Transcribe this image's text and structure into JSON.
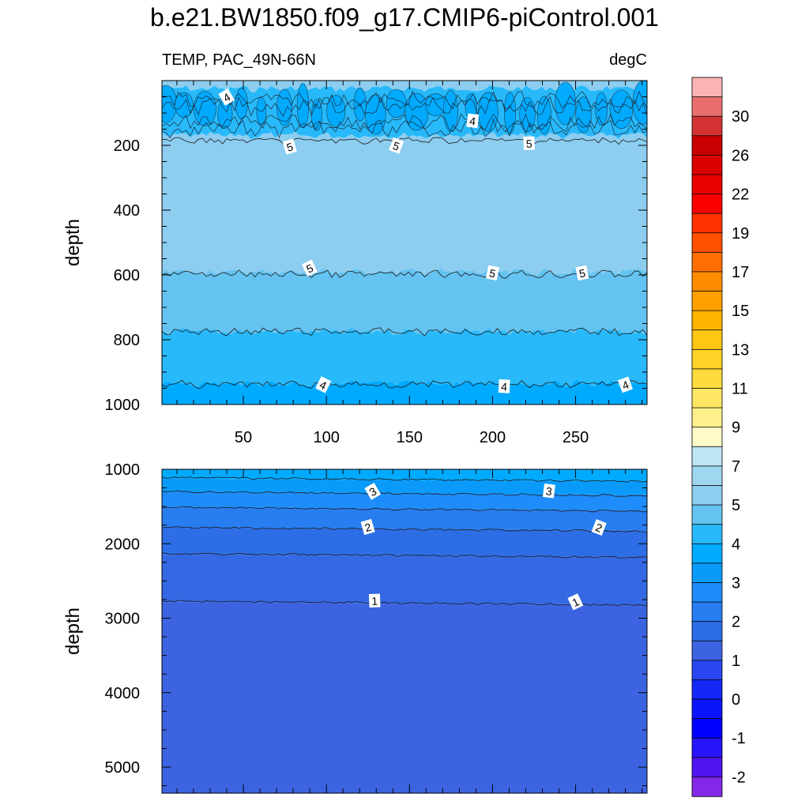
{
  "title": "b.e21.BW1850.f09_g17.CMIP6-piControl.001",
  "subtitle_left": "TEMP, PAC_49N-66N",
  "subtitle_right": "degC",
  "chart_data": [
    {
      "type": "contour",
      "panel": "upper",
      "ylabel": "depth",
      "xlabel": "",
      "xlim": [
        1,
        293
      ],
      "ylim": [
        0,
        1000
      ],
      "x_ticks": [
        50,
        100,
        150,
        200,
        250
      ],
      "y_ticks": [
        200,
        400,
        600,
        800,
        1000
      ],
      "bands": [
        {
          "from": 0,
          "to": 25,
          "level": "5.5-6"
        },
        {
          "from": 25,
          "to": 170,
          "level": "4-4.5"
        },
        {
          "from": 170,
          "to": 590,
          "level": "5.5-6"
        },
        {
          "from": 590,
          "to": 775,
          "level": "4.5-5"
        },
        {
          "from": 775,
          "to": 935,
          "level": "4-4.5"
        },
        {
          "from": 935,
          "to": 1000,
          "level": "3.5-4"
        }
      ],
      "contour_lines": [
        {
          "level": 5,
          "depth": 185
        },
        {
          "level": 5,
          "depth": 598
        },
        {
          "level": 4.5,
          "depth": 775
        },
        {
          "level": 4,
          "depth": 938
        }
      ],
      "contour_labels": [
        {
          "text": "4",
          "x": 40,
          "depth": 52
        },
        {
          "text": "4",
          "x": 188,
          "depth": 125
        },
        {
          "text": "5",
          "x": 78,
          "depth": 205
        },
        {
          "text": "5",
          "x": 142,
          "depth": 202
        },
        {
          "text": "5",
          "x": 222,
          "depth": 195
        },
        {
          "text": "5",
          "x": 90,
          "depth": 580
        },
        {
          "text": "5",
          "x": 200,
          "depth": 595
        },
        {
          "text": "5",
          "x": 254,
          "depth": 595
        },
        {
          "text": "4",
          "x": 98,
          "depth": 940
        },
        {
          "text": "4",
          "x": 207,
          "depth": 945
        },
        {
          "text": "4",
          "x": 280,
          "depth": 940
        }
      ]
    },
    {
      "type": "contour",
      "panel": "lower",
      "ylabel": "depth",
      "xlabel": "",
      "xlim": [
        1,
        293
      ],
      "ylim": [
        1000,
        5350
      ],
      "y_ticks": [
        1000,
        2000,
        3000,
        4000,
        5000
      ],
      "bands": [
        {
          "from": 1000,
          "to": 1120,
          "level": "3.5-4"
        },
        {
          "from": 1120,
          "to": 1300,
          "level": "3-3.5"
        },
        {
          "from": 1300,
          "to": 1510,
          "level": "2.5-3"
        },
        {
          "from": 1510,
          "to": 1780,
          "level": "2-2.5"
        },
        {
          "from": 1780,
          "to": 2140,
          "level": "1.5-2"
        },
        {
          "from": 2140,
          "to": 2780,
          "level": "1-1.5"
        },
        {
          "from": 2780,
          "to": 5350,
          "level": "0.5-1"
        }
      ],
      "contour_lines": [
        {
          "level": 3.5,
          "depth": 1110
        },
        {
          "level": 3,
          "depth": 1300
        },
        {
          "level": 2.5,
          "depth": 1510
        },
        {
          "level": 2,
          "depth": 1780
        },
        {
          "level": 1.5,
          "depth": 2130
        },
        {
          "level": 1,
          "depth": 2770
        }
      ],
      "contour_labels": [
        {
          "text": "3",
          "x": 128,
          "depth": 1300
        },
        {
          "text": "3",
          "x": 234,
          "depth": 1295
        },
        {
          "text": "2",
          "x": 125,
          "depth": 1780
        },
        {
          "text": "2",
          "x": 264,
          "depth": 1785
        },
        {
          "text": "1",
          "x": 129,
          "depth": 2770
        },
        {
          "text": "1",
          "x": 250,
          "depth": 2785
        }
      ]
    }
  ],
  "colorbar": {
    "labels": [
      "30",
      "26",
      "22",
      "19",
      "17",
      "15",
      "13",
      "11",
      "9",
      "7",
      "5",
      "4",
      "3",
      "2",
      "1",
      "0",
      "-1",
      "-2"
    ],
    "colors": [
      "#FAB4B4",
      "#EB6E6E",
      "#D23232",
      "#C80000",
      "#DC0000",
      "#EB0000",
      "#FA0000",
      "#FF3200",
      "#FF5000",
      "#FF6E00",
      "#FF8C00",
      "#FFA000",
      "#FFB400",
      "#FFC814",
      "#FFD228",
      "#FFDC3C",
      "#FFE664",
      "#FFF08C",
      "#FFFAC8",
      "#BEE6F5",
      "#A0D7F0",
      "#8CCDF0",
      "#64C3F0",
      "#28B9FA",
      "#00AAFF",
      "#0A9BFA",
      "#1E8CFA",
      "#287DF0",
      "#2D6EE6",
      "#3C64E1",
      "#2846F0",
      "#1428F5",
      "#0A14FA",
      "#0000FF",
      "#2814FA",
      "#5014F0",
      "#8228E6"
    ]
  },
  "band_colors": {
    "5.5-6": "#8CCDF0",
    "4.5-5": "#64C3F0",
    "4-4.5": "#28B9FA",
    "3.5-4": "#00AAFF",
    "3-3.5": "#0A9BFA",
    "2.5-3": "#1E8CFA",
    "2-2.5": "#287DF0",
    "1.5-2": "#2D6EE6",
    "1-1.5": "#3469E3",
    "0.5-1": "#3C64E1"
  }
}
